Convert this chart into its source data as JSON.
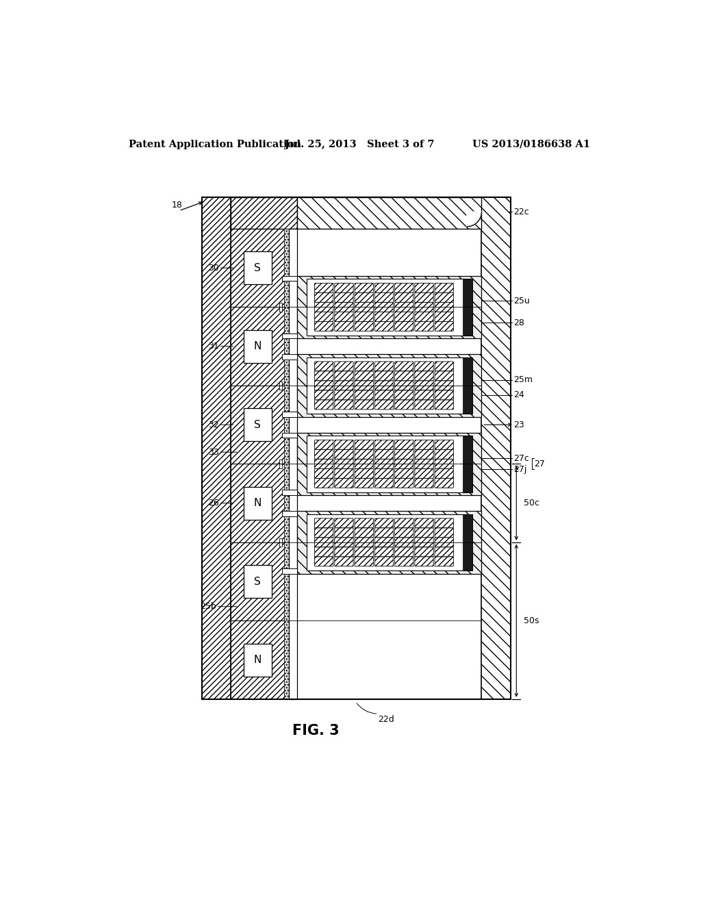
{
  "bg_color": "#ffffff",
  "header_left": "Patent Application Publication",
  "header_mid": "Jul. 25, 2013   Sheet 3 of 7",
  "header_right": "US 2013/0186638 A1",
  "fig_label": "FIG. 3",
  "header_fontsize": 10.5,
  "label_fontsize": 9,
  "fig_fontsize": 15
}
